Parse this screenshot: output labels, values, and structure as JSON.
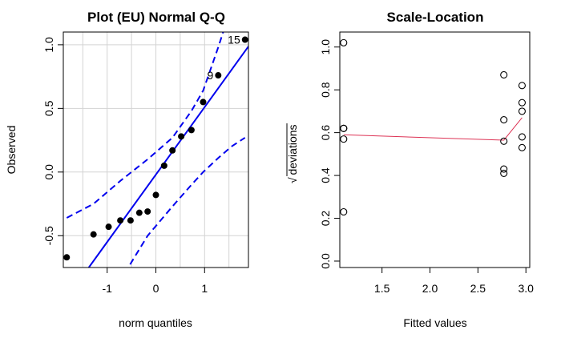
{
  "chart_data": [
    {
      "type": "scatter",
      "title": "Plot (EU) Normal Q-Q",
      "xlabel": "norm quantiles",
      "ylabel": "Observed",
      "xlim": [
        -1.9,
        1.9
      ],
      "ylim": [
        -0.75,
        1.1
      ],
      "xticks": [
        -1,
        0,
        1
      ],
      "yticks": [
        -0.5,
        0.0,
        0.5,
        1.0
      ],
      "ytick_labels": [
        "-0.5",
        "0.0",
        "0.5",
        "1.0"
      ],
      "grid": true,
      "points": [
        {
          "x": -1.83,
          "y": -0.67
        },
        {
          "x": -1.28,
          "y": -0.49
        },
        {
          "x": -0.97,
          "y": -0.43
        },
        {
          "x": -0.73,
          "y": -0.38
        },
        {
          "x": -0.52,
          "y": -0.38
        },
        {
          "x": -0.34,
          "y": -0.32
        },
        {
          "x": -0.17,
          "y": -0.31
        },
        {
          "x": 0.0,
          "y": -0.18
        },
        {
          "x": 0.17,
          "y": 0.05
        },
        {
          "x": 0.34,
          "y": 0.17
        },
        {
          "x": 0.52,
          "y": 0.28
        },
        {
          "x": 0.73,
          "y": 0.33
        },
        {
          "x": 0.97,
          "y": 0.55
        },
        {
          "x": 1.28,
          "y": 0.76
        },
        {
          "x": 1.83,
          "y": 1.04
        }
      ],
      "point_labels": [
        {
          "text": "15",
          "x": 1.83,
          "y": 1.04
        },
        {
          "text": "9",
          "x": 1.28,
          "y": 0.76
        }
      ],
      "reference_line": {
        "intercept": -0.02,
        "slope": 0.53
      },
      "envelope": {
        "upper": [
          {
            "x": -1.83,
            "y": -0.36
          },
          {
            "x": -1.28,
            "y": -0.25
          },
          {
            "x": -0.73,
            "y": -0.07
          },
          {
            "x": -0.17,
            "y": 0.1
          },
          {
            "x": 0.34,
            "y": 0.27
          },
          {
            "x": 0.73,
            "y": 0.48
          },
          {
            "x": 0.97,
            "y": 0.64
          },
          {
            "x": 1.28,
            "y": 0.98
          },
          {
            "x": 1.55,
            "y": 1.3
          }
        ],
        "lower": [
          {
            "x": -0.62,
            "y": -0.8
          },
          {
            "x": -0.52,
            "y": -0.72
          },
          {
            "x": -0.17,
            "y": -0.5
          },
          {
            "x": 0.34,
            "y": -0.27
          },
          {
            "x": 0.73,
            "y": -0.1
          },
          {
            "x": 0.97,
            "y": 0.0
          },
          {
            "x": 1.28,
            "y": 0.11
          },
          {
            "x": 1.55,
            "y": 0.2
          },
          {
            "x": 1.83,
            "y": 0.27
          }
        ]
      },
      "point_color": "#000000",
      "line_color": "#0000ee"
    },
    {
      "type": "scatter",
      "title": "Scale-Location",
      "xlabel": "Fitted values",
      "ylabel": "deviations",
      "ylabel_prefix": "√",
      "xlim": [
        1.06,
        3.04
      ],
      "ylim": [
        -0.03,
        1.07
      ],
      "xticks": [
        1.5,
        2.0,
        2.5,
        3.0
      ],
      "xtick_labels": [
        "1.5",
        "2.0",
        "2.5",
        "3.0"
      ],
      "yticks": [
        0.0,
        0.2,
        0.4,
        0.6,
        0.8,
        1.0
      ],
      "ytick_labels": [
        "0.0",
        "0.2",
        "0.4",
        "0.6",
        "0.8",
        "1.0"
      ],
      "grid": false,
      "points": [
        {
          "x": 1.1,
          "y": 1.02
        },
        {
          "x": 1.1,
          "y": 0.62
        },
        {
          "x": 1.1,
          "y": 0.62
        },
        {
          "x": 1.1,
          "y": 0.57
        },
        {
          "x": 1.1,
          "y": 0.23
        },
        {
          "x": 2.77,
          "y": 0.87
        },
        {
          "x": 2.77,
          "y": 0.66
        },
        {
          "x": 2.77,
          "y": 0.56
        },
        {
          "x": 2.77,
          "y": 0.43
        },
        {
          "x": 2.77,
          "y": 0.41
        },
        {
          "x": 2.96,
          "y": 0.82
        },
        {
          "x": 2.96,
          "y": 0.74
        },
        {
          "x": 2.96,
          "y": 0.7
        },
        {
          "x": 2.96,
          "y": 0.58
        },
        {
          "x": 2.96,
          "y": 0.53
        }
      ],
      "smooth_line": [
        {
          "x": 1.1,
          "y": 0.59
        },
        {
          "x": 2.77,
          "y": 0.565
        },
        {
          "x": 2.96,
          "y": 0.67
        }
      ],
      "point_color": "#000000",
      "line_color": "#dd3355"
    }
  ]
}
